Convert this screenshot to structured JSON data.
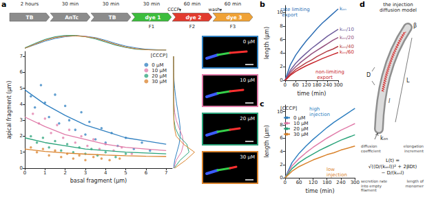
{
  "panel_labels": [
    "a",
    "b",
    "c",
    "d"
  ],
  "timeline": {
    "steps": [
      {
        "label": "TB",
        "duration": "2 hours",
        "color": "#8c8c8c"
      },
      {
        "label": "AnTc",
        "duration": "30 min",
        "color": "#8c8c8c"
      },
      {
        "label": "TB",
        "duration": "30 min",
        "color": "#8c8c8c"
      },
      {
        "label": "dye 1",
        "duration": "30 min",
        "color": "#3dbd3d",
        "frame": "F1"
      },
      {
        "label": "dye 2",
        "duration": "60 min",
        "color": "#e23b2e",
        "frame": "F2",
        "event": "CCCP"
      },
      {
        "label": "dye 3",
        "duration": "60 min",
        "color": "#f0a236",
        "frame": "F3",
        "event": "wash"
      }
    ]
  },
  "micrographs": [
    {
      "label": "0 µM",
      "color": "#2e7fc0"
    },
    {
      "label": "10 µM",
      "color": "#e07aa8"
    },
    {
      "label": "20 µM",
      "color": "#2aa37a"
    },
    {
      "label": "30 µM",
      "color": "#d9822b"
    }
  ],
  "chart_data": [
    {
      "type": "scatter",
      "xlabel": "basal fragment (µm)",
      "ylabel": "apical fragment (µm)",
      "xlim": [
        0,
        7.3
      ],
      "xticks": [
        0,
        1,
        2,
        3,
        4,
        5,
        6,
        7
      ],
      "ylim": [
        0,
        7.3
      ],
      "yticks": [
        0,
        1,
        2,
        3,
        4,
        5,
        6,
        7
      ],
      "grid": false,
      "legend": "upper right",
      "legend_title": "[CCCP]",
      "fit_x": [
        0,
        1,
        2,
        3,
        4,
        5,
        6,
        7
      ],
      "series": [
        {
          "name": "0 µM",
          "color": "#2e7fc0",
          "points": [
            [
              0.3,
              4.5
            ],
            [
              0.5,
              3.8
            ],
            [
              0.8,
              5.2
            ],
            [
              1.0,
              4.1
            ],
            [
              1.2,
              3.2
            ],
            [
              1.5,
              4.6
            ],
            [
              1.7,
              2.8
            ],
            [
              2.0,
              3.9
            ],
            [
              2.2,
              3.0
            ],
            [
              2.5,
              2.4
            ],
            [
              2.8,
              3.5
            ],
            [
              3.0,
              2.1
            ],
            [
              3.2,
              2.9
            ],
            [
              3.5,
              1.8
            ],
            [
              3.8,
              2.5
            ],
            [
              4.0,
              1.6
            ],
            [
              4.3,
              2.2
            ],
            [
              4.6,
              1.4
            ],
            [
              5.0,
              1.9
            ],
            [
              5.4,
              1.2
            ],
            [
              5.8,
              1.6
            ],
            [
              6.2,
              1.1
            ]
          ],
          "fit": [
            4.9,
            4.0,
            3.3,
            2.7,
            2.3,
            1.9,
            1.7,
            1.5
          ]
        },
        {
          "name": "10 µM",
          "color": "#e07aa8",
          "points": [
            [
              0.4,
              3.4
            ],
            [
              0.7,
              2.8
            ],
            [
              1.0,
              3.1
            ],
            [
              1.3,
              2.2
            ],
            [
              1.6,
              2.7
            ],
            [
              1.9,
              1.9
            ],
            [
              2.2,
              2.4
            ],
            [
              2.5,
              1.6
            ],
            [
              2.8,
              2.0
            ],
            [
              3.1,
              1.4
            ],
            [
              3.4,
              1.8
            ],
            [
              3.7,
              1.2
            ],
            [
              4.0,
              1.5
            ],
            [
              4.4,
              1.1
            ],
            [
              4.8,
              1.3
            ],
            [
              5.3,
              0.9
            ]
          ],
          "fit": [
            3.2,
            2.6,
            2.1,
            1.8,
            1.5,
            1.3,
            1.2,
            1.1
          ]
        },
        {
          "name": "20 µM",
          "color": "#2aa37a",
          "points": [
            [
              0.3,
              2.0
            ],
            [
              0.6,
              1.6
            ],
            [
              0.9,
              1.9
            ],
            [
              1.2,
              1.3
            ],
            [
              1.5,
              1.7
            ],
            [
              1.8,
              1.1
            ],
            [
              2.1,
              1.5
            ],
            [
              2.4,
              1.0
            ],
            [
              2.7,
              1.3
            ],
            [
              3.0,
              0.9
            ],
            [
              3.3,
              1.2
            ],
            [
              3.6,
              0.8
            ],
            [
              4.0,
              1.0
            ],
            [
              4.5,
              0.7
            ],
            [
              5.0,
              0.9
            ]
          ],
          "fit": [
            1.9,
            1.6,
            1.4,
            1.2,
            1.1,
            1.0,
            0.95,
            0.9
          ]
        },
        {
          "name": "30 µM",
          "color": "#d9822b",
          "points": [
            [
              0.3,
              1.3
            ],
            [
              0.6,
              1.0
            ],
            [
              0.9,
              1.2
            ],
            [
              1.2,
              0.8
            ],
            [
              1.5,
              1.1
            ],
            [
              1.8,
              0.7
            ],
            [
              2.1,
              0.9
            ],
            [
              2.4,
              0.6
            ],
            [
              2.7,
              0.8
            ],
            [
              3.0,
              0.5
            ],
            [
              3.4,
              0.7
            ],
            [
              3.8,
              0.6
            ],
            [
              4.2,
              0.5
            ],
            [
              4.7,
              0.6
            ]
          ],
          "fit": [
            1.2,
            1.05,
            0.95,
            0.88,
            0.82,
            0.78,
            0.75,
            0.73
          ]
        }
      ]
    },
    {
      "type": "line",
      "tick_labels": false,
      "xlim": [
        0,
        7.3
      ],
      "ylim": [
        0,
        0.4
      ],
      "x": [
        0,
        0.5,
        1,
        1.5,
        2,
        2.5,
        3,
        3.5,
        4,
        4.5,
        5,
        5.5,
        6,
        6.5,
        7
      ],
      "series": [
        {
          "color": "#2e7fc0",
          "values": [
            0.04,
            0.12,
            0.2,
            0.26,
            0.3,
            0.32,
            0.31,
            0.28,
            0.22,
            0.15,
            0.09,
            0.05,
            0.02,
            0.01,
            0
          ]
        },
        {
          "color": "#e07aa8",
          "values": [
            0.05,
            0.14,
            0.23,
            0.29,
            0.32,
            0.33,
            0.31,
            0.26,
            0.19,
            0.12,
            0.06,
            0.03,
            0.01,
            0,
            0
          ]
        },
        {
          "color": "#2aa37a",
          "values": [
            0.05,
            0.15,
            0.24,
            0.3,
            0.33,
            0.33,
            0.3,
            0.25,
            0.18,
            0.11,
            0.06,
            0.02,
            0.01,
            0,
            0
          ]
        },
        {
          "color": "#d9822b",
          "values": [
            0.04,
            0.13,
            0.22,
            0.28,
            0.31,
            0.32,
            0.3,
            0.27,
            0.2,
            0.13,
            0.07,
            0.03,
            0.01,
            0,
            0
          ]
        }
      ]
    },
    {
      "type": "line",
      "tick_labels": false,
      "xlim": [
        0,
        1
      ],
      "ylim": [
        0,
        7.3
      ],
      "y": [
        0,
        0.5,
        1,
        1.5,
        2,
        2.5,
        3,
        3.5,
        4,
        4.5,
        5,
        5.5,
        6,
        6.5,
        7
      ],
      "series": [
        {
          "color": "#2e7fc0",
          "values": [
            0,
            0.05,
            0.15,
            0.25,
            0.3,
            0.3,
            0.26,
            0.2,
            0.14,
            0.09,
            0.05,
            0.02,
            0.01,
            0,
            0
          ]
        },
        {
          "color": "#e07aa8",
          "values": [
            0.01,
            0.12,
            0.35,
            0.45,
            0.4,
            0.25,
            0.12,
            0.05,
            0.02,
            0.01,
            0,
            0,
            0,
            0,
            0
          ]
        },
        {
          "color": "#2aa37a",
          "values": [
            0.02,
            0.3,
            0.7,
            0.6,
            0.25,
            0.08,
            0.02,
            0.01,
            0,
            0,
            0,
            0,
            0,
            0,
            0
          ]
        },
        {
          "color": "#d9822b",
          "values": [
            0.05,
            0.55,
            0.95,
            0.45,
            0.12,
            0.04,
            0.01,
            0,
            0,
            0,
            0,
            0,
            0,
            0,
            0
          ]
        }
      ]
    },
    {
      "type": "line",
      "xlabel": "time (min)",
      "ylabel": "length (µm)",
      "x": [
        0,
        30,
        60,
        90,
        120,
        150,
        180,
        210,
        240,
        270,
        300
      ],
      "xlim": [
        0,
        300
      ],
      "xticks": [
        0,
        60,
        120,
        180,
        240,
        300
      ],
      "ylim": [
        0,
        11
      ],
      "yticks": [
        0,
        2,
        4,
        6,
        8,
        10
      ],
      "grid": false,
      "series": [
        {
          "name": "kₒₙ",
          "color": "#2e6fb5",
          "values": [
            0,
            2.3,
            3.7,
            4.8,
            5.8,
            6.7,
            7.6,
            8.4,
            9.1,
            9.8,
            10.5
          ]
        },
        {
          "name": "kₒₙ/10",
          "color": "#6f5d9c",
          "values": [
            0,
            1.5,
            2.5,
            3.3,
            4.0,
            4.7,
            5.3,
            5.9,
            6.5,
            7.0,
            7.5
          ]
        },
        {
          "name": "kₒₙ/20",
          "color": "#94507e",
          "values": [
            0,
            1.2,
            2.0,
            2.7,
            3.3,
            3.9,
            4.4,
            4.9,
            5.4,
            5.9,
            6.3
          ]
        },
        {
          "name": "kₒₙ/40",
          "color": "#b43c44",
          "values": [
            0,
            0.9,
            1.6,
            2.1,
            2.6,
            3.0,
            3.5,
            3.9,
            4.3,
            4.6,
            5.0
          ]
        },
        {
          "name": "kₒₙ/60",
          "color": "#c8262b",
          "values": [
            0,
            0.75,
            1.3,
            1.75,
            2.15,
            2.5,
            2.85,
            3.2,
            3.5,
            3.8,
            4.1
          ]
        }
      ],
      "annotations": [
        {
          "text": "rate limiting export",
          "color": "#2e6fb5"
        },
        {
          "text": "non-limiting export",
          "color": "#c8262b"
        }
      ]
    },
    {
      "type": "line",
      "xlabel": "time (min)",
      "ylabel": "length (µm)",
      "x": [
        0,
        30,
        60,
        90,
        120,
        150,
        180,
        210,
        240,
        270,
        300
      ],
      "xlim": [
        0,
        300
      ],
      "xticks": [
        0,
        60,
        120,
        180,
        240,
        300
      ],
      "ylim": [
        0,
        11
      ],
      "yticks": [
        0,
        2,
        4,
        6,
        8,
        10
      ],
      "grid": false,
      "legend": "upper left",
      "legend_title": "[CCCP]",
      "series": [
        {
          "name": "0 µM",
          "color": "#2e7fc0",
          "values": [
            0,
            2.3,
            3.7,
            4.8,
            5.8,
            6.7,
            7.6,
            8.4,
            9.1,
            9.8,
            10.5
          ]
        },
        {
          "name": "10 µM",
          "color": "#e07aa8",
          "values": [
            0,
            1.8,
            2.9,
            3.8,
            4.6,
            5.3,
            6.0,
            6.6,
            7.2,
            7.7,
            8.2
          ]
        },
        {
          "name": "20 µM",
          "color": "#2aa37a",
          "values": [
            0,
            1.4,
            2.3,
            3.0,
            3.6,
            4.2,
            4.7,
            5.2,
            5.7,
            6.1,
            6.5
          ]
        },
        {
          "name": "30 µM",
          "color": "#d9822b",
          "values": [
            0,
            1.0,
            1.7,
            2.2,
            2.7,
            3.1,
            3.5,
            3.8,
            4.2,
            4.5,
            4.8
          ]
        }
      ],
      "annotations": [
        {
          "text": "high injection",
          "color": "#2e7fc0"
        },
        {
          "text": "low injection",
          "color": "#d9822b"
        }
      ]
    }
  ],
  "diagram": {
    "title": "the injection diffusion model",
    "labels": {
      "beta": "β",
      "D": "D",
      "L": "L",
      "l": "l",
      "kon": "kₒₙ"
    },
    "formula": [
      "L(t) =",
      "√((D/(kₒₙl))² + 2βDt)",
      "− D/(kₒₙl)"
    ],
    "annotations": {
      "D": "diffusion coefficient",
      "beta": "elongation increment",
      "kon": "secretion rate into empty filament",
      "l": "length of monomer"
    }
  }
}
